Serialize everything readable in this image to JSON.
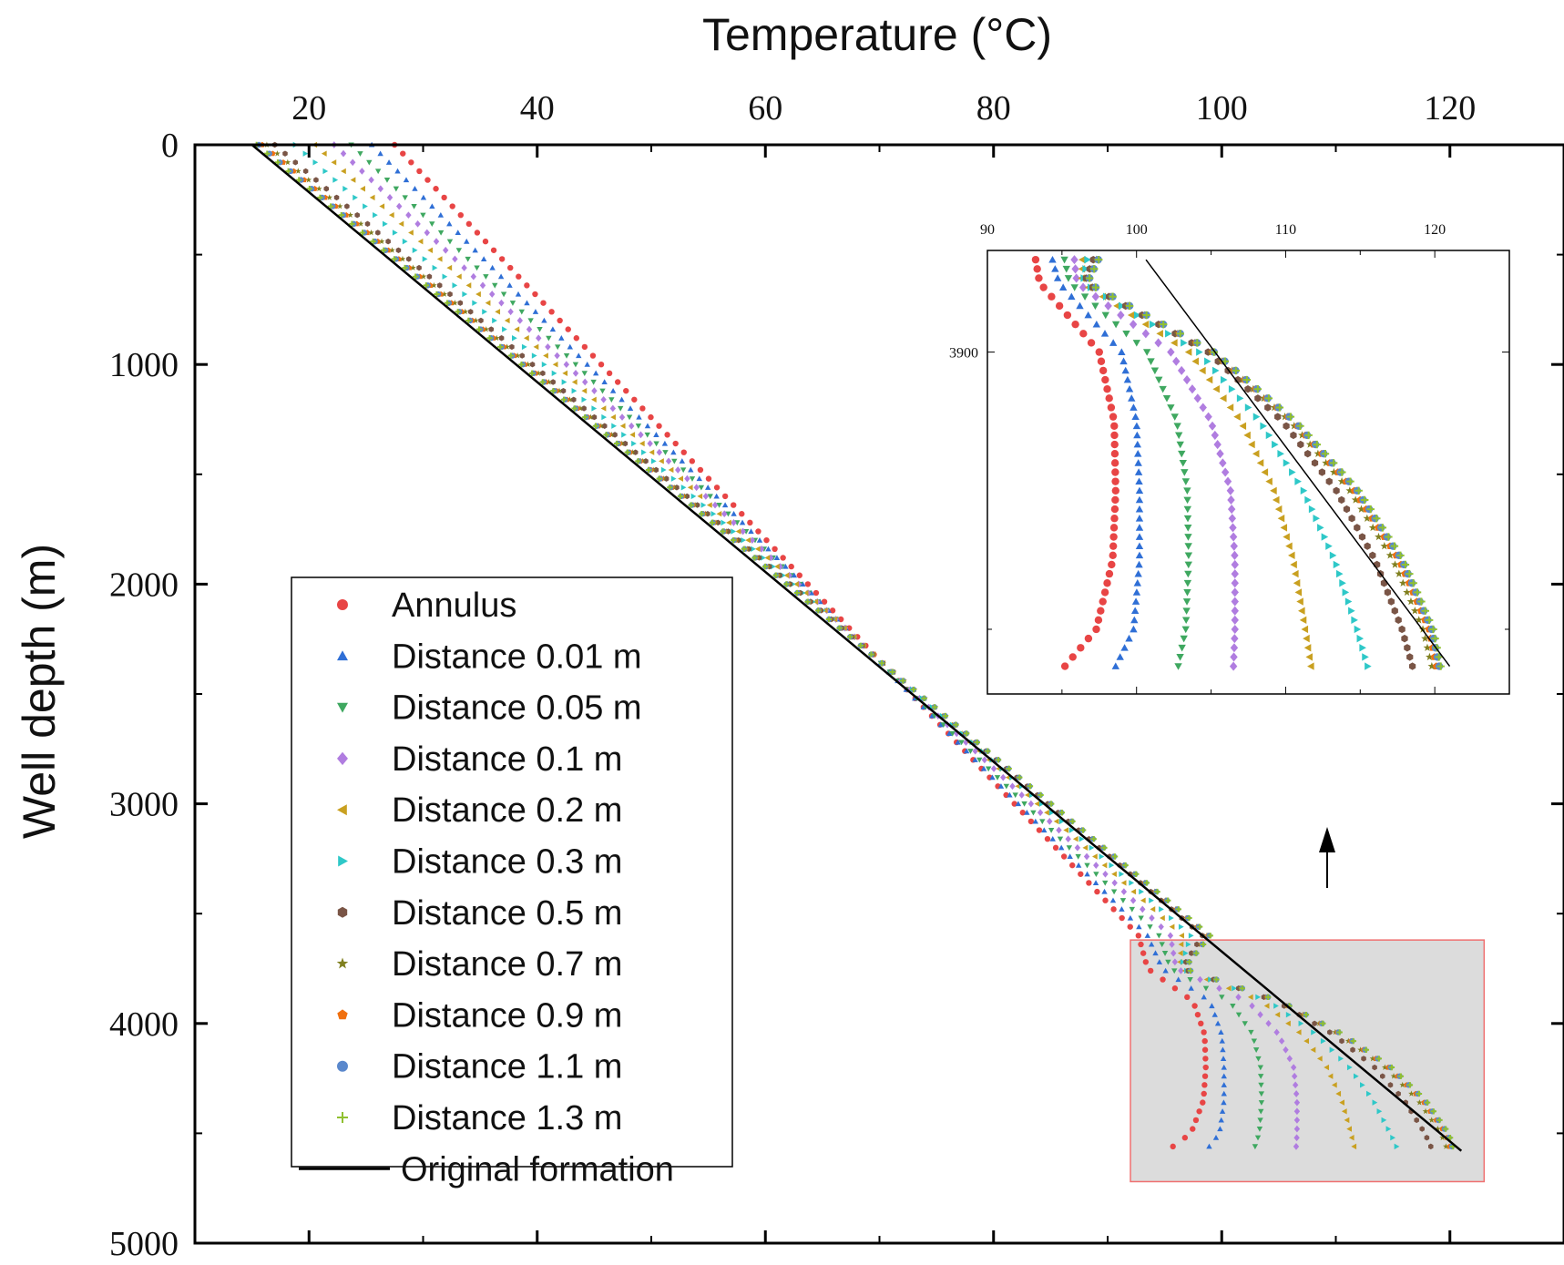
{
  "chart_data": {
    "type": "scatter",
    "title": "",
    "xlabel": "Temperature (°C)",
    "ylabel": "Well depth (m)",
    "x_axis_position": "top",
    "y_axis_inverted": true,
    "xlim": [
      10,
      130
    ],
    "ylim": [
      0,
      5000
    ],
    "x_ticks": [
      20,
      40,
      60,
      80,
      100,
      120
    ],
    "y_ticks": [
      0,
      1000,
      2000,
      3000,
      4000,
      5000
    ],
    "grid": false,
    "legend_position": "bottom-left",
    "legend": [
      "Annulus",
      "Distance 0.01 m",
      "Distance 0.05 m",
      "Distance 0.1 m",
      "Distance 0.2 m",
      "Distance 0.3 m",
      "Distance 0.5 m",
      "Distance 0.7 m",
      "Distance 0.9 m",
      "Distance 1.1 m",
      "Distance 1.3 m",
      "Original formation"
    ],
    "original_formation": {
      "x": [
        15,
        121
      ],
      "depth": [
        0,
        4580
      ]
    },
    "series": [
      {
        "name": "Annulus",
        "color": "#e84545",
        "marker": "circle",
        "surface_temp": 27.5,
        "depth_3600_temp": 92.7,
        "inset_depths": [
          3750,
          3900,
          4050,
          4200,
          4350,
          4500,
          4580
        ],
        "inset_temps": [
          93.5,
          97.5,
          98.5,
          98.6,
          98.4,
          97.3,
          95.2
        ]
      },
      {
        "name": "Distance 0.01 m",
        "color": "#2f6fd6",
        "marker": "triangle-up",
        "surface_temp": 25.5,
        "depth_3600_temp": 93.5,
        "inset_depths": [
          3750,
          3900,
          4050,
          4200,
          4350,
          4500,
          4580
        ],
        "inset_temps": [
          94.8,
          99.0,
          100.0,
          100.2,
          100.2,
          99.8,
          98.6
        ]
      },
      {
        "name": "Distance 0.05 m",
        "color": "#3fa860",
        "marker": "triangle-down",
        "surface_temp": 23.7,
        "depth_3600_temp": 94.5,
        "inset_depths": [
          3750,
          3900,
          4050,
          4200,
          4350,
          4500,
          4580
        ],
        "inset_temps": [
          95.5,
          100.7,
          102.7,
          103.4,
          103.5,
          103.3,
          102.8
        ]
      },
      {
        "name": "Distance 0.1 m",
        "color": "#b07de0",
        "marker": "diamond",
        "surface_temp": 22.2,
        "depth_3600_temp": 95.5,
        "inset_depths": [
          3750,
          3900,
          4050,
          4200,
          4350,
          4500,
          4580
        ],
        "inset_temps": [
          96.0,
          102.3,
          105.0,
          106.3,
          106.6,
          106.6,
          106.5
        ]
      },
      {
        "name": "Distance 0.2 m",
        "color": "#c9a020",
        "marker": "triangle-left",
        "surface_temp": 20.5,
        "depth_3600_temp": 96.5,
        "inset_depths": [
          3750,
          3900,
          4050,
          4200,
          4350,
          4500,
          4580
        ],
        "inset_temps": [
          96.3,
          103.5,
          107.0,
          109.2,
          110.5,
          111.3,
          111.7
        ]
      },
      {
        "name": "Distance 0.3 m",
        "color": "#2ec8c8",
        "marker": "triangle-right",
        "surface_temp": 18.8,
        "depth_3600_temp": 97.3,
        "inset_depths": [
          3750,
          3900,
          4050,
          4200,
          4350,
          4500,
          4580
        ],
        "inset_temps": [
          96.4,
          104.2,
          108.3,
          111.2,
          113.3,
          114.8,
          115.5
        ]
      },
      {
        "name": "Distance 0.5 m",
        "color": "#7a5546",
        "marker": "hexagon",
        "surface_temp": 17.0,
        "depth_3600_temp": 98.3,
        "inset_depths": [
          3750,
          3900,
          4050,
          4200,
          4350,
          4500,
          4580
        ],
        "inset_temps": [
          96.5,
          104.8,
          109.8,
          113.4,
          116.0,
          117.8,
          118.5
        ]
      },
      {
        "name": "Distance 0.7 m",
        "color": "#808020",
        "marker": "star",
        "surface_temp": 16.3,
        "depth_3600_temp": 98.7,
        "inset_depths": [
          3750,
          3900,
          4050,
          4200,
          4350,
          4500,
          4580
        ],
        "inset_temps": [
          96.6,
          105.0,
          110.3,
          114.3,
          117.2,
          119.2,
          119.8
        ]
      },
      {
        "name": "Distance 0.9 m",
        "color": "#f07010",
        "marker": "pentagon",
        "surface_temp": 15.9,
        "depth_3600_temp": 98.8,
        "inset_depths": [
          3750,
          3900,
          4050,
          4200,
          4350,
          4500,
          4580
        ],
        "inset_temps": [
          96.7,
          105.1,
          110.5,
          114.6,
          117.6,
          119.6,
          120.1
        ]
      },
      {
        "name": "Distance 1.1 m",
        "color": "#5a88cc",
        "marker": "circle",
        "surface_temp": 15.6,
        "depth_3600_temp": 98.9,
        "inset_depths": [
          3750,
          3900,
          4050,
          4200,
          4350,
          4500,
          4580
        ],
        "inset_temps": [
          96.7,
          105.2,
          110.6,
          114.8,
          117.8,
          119.8,
          120.3
        ]
      },
      {
        "name": "Distance 1.3 m",
        "color": "#90c030",
        "marker": "plus",
        "surface_temp": 15.4,
        "depth_3600_temp": 99.0,
        "inset_depths": [
          3750,
          3900,
          4050,
          4200,
          4350,
          4500,
          4580
        ],
        "inset_temps": [
          96.7,
          105.2,
          110.7,
          114.9,
          117.9,
          119.9,
          120.4
        ]
      }
    ],
    "inset": {
      "xlim": [
        90,
        125
      ],
      "x_ticks": [
        90,
        100,
        110,
        120
      ],
      "ylim": [
        3680,
        4640
      ],
      "y_ticks": [
        3900
      ],
      "depth_range": [
        3700,
        4580
      ],
      "zoom_region": {
        "x": [
          92,
          123
        ],
        "depth": [
          3620,
          4720
        ]
      }
    }
  }
}
